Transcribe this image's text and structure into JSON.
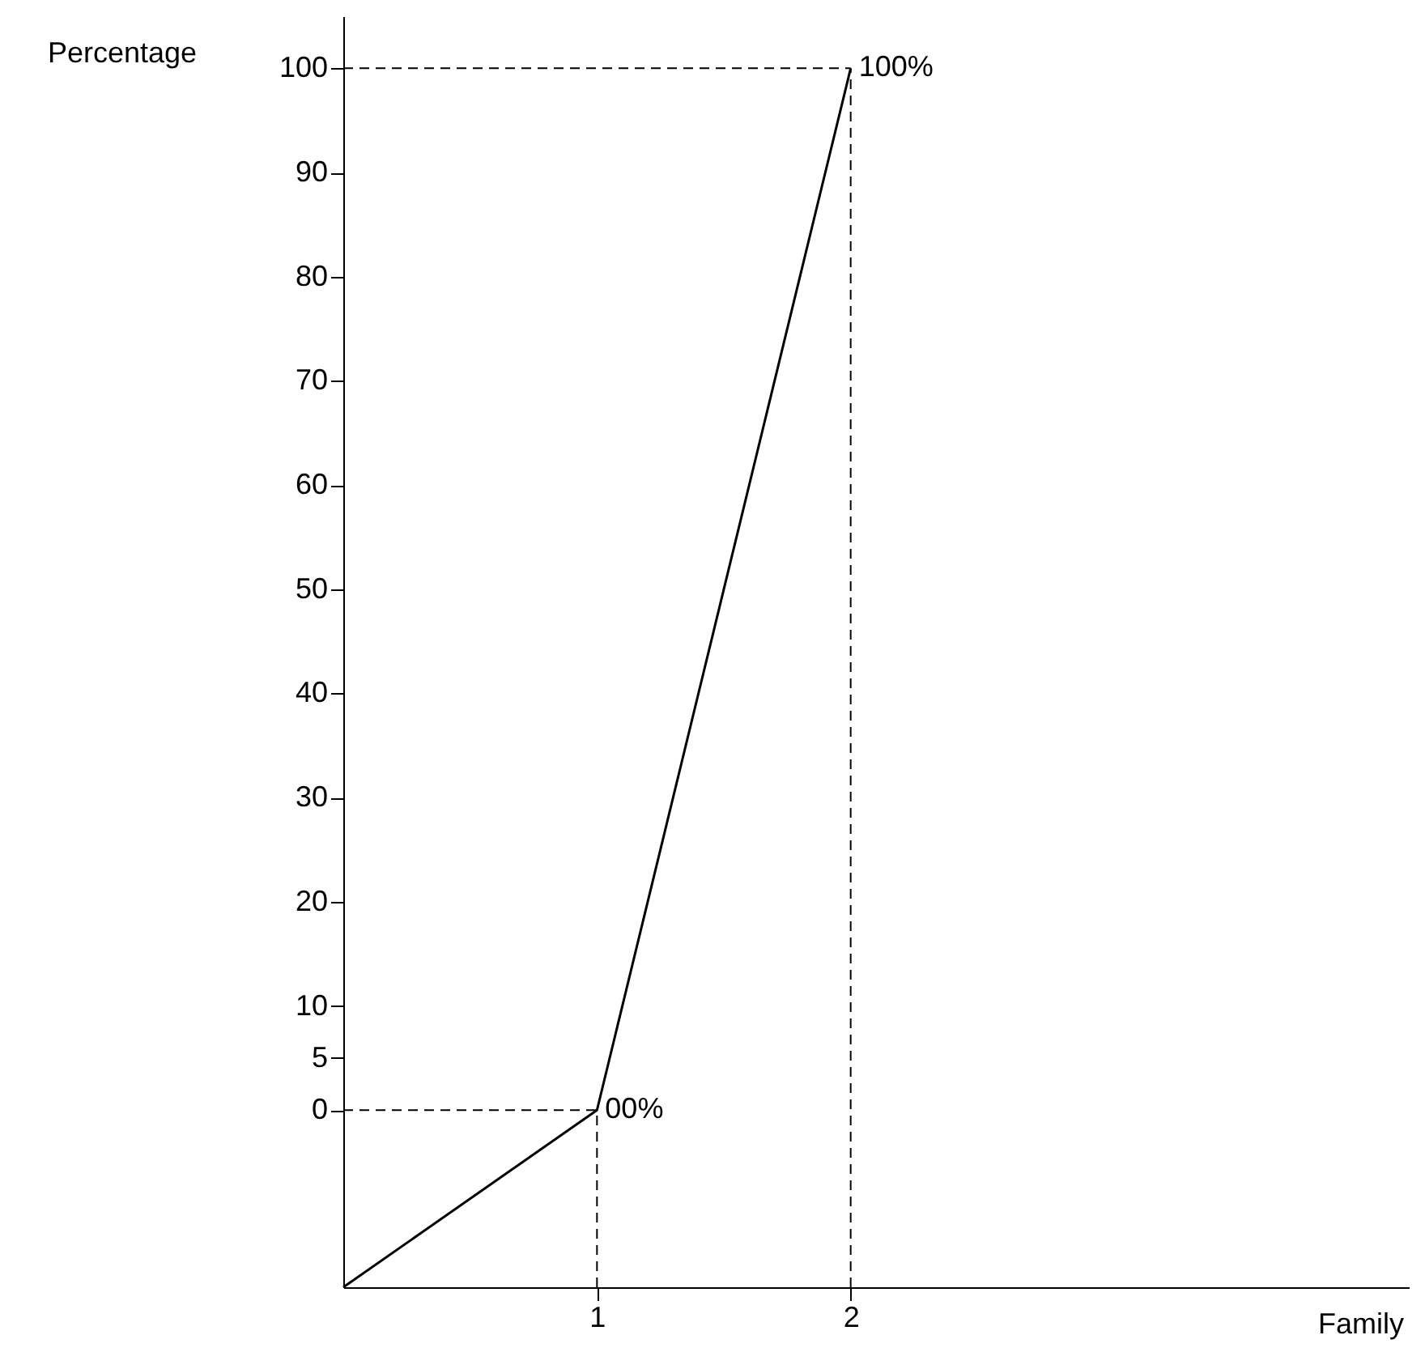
{
  "chart_data": {
    "type": "line",
    "xlabel": "Family",
    "ylabel": "Percentage",
    "x": [
      0,
      1,
      2
    ],
    "series": [
      {
        "color": "#000000",
        "values": [
          -17,
          0,
          100
        ]
      }
    ],
    "xlim": [
      0,
      4.2
    ],
    "xticks": [
      1,
      2
    ],
    "ylim": [
      -17,
      105
    ],
    "yticks": [
      0,
      5,
      10,
      20,
      30,
      40,
      50,
      60,
      70,
      80,
      90,
      100
    ],
    "ref_lines": [
      {
        "axis": "x",
        "value": 1,
        "line_style": "dashed"
      },
      {
        "axis": "y",
        "value": 0,
        "line_style": "dashed"
      },
      {
        "axis": "x",
        "value": 2,
        "line_style": "dashed"
      },
      {
        "axis": "y",
        "value": 100,
        "line_style": "dashed"
      }
    ],
    "annotations": [
      {
        "text": "00%",
        "x": 1,
        "y": 0
      },
      {
        "text": "100%",
        "x": 2,
        "y": 100
      }
    ],
    "marker": "none",
    "line_style": "solid",
    "grid": false
  }
}
